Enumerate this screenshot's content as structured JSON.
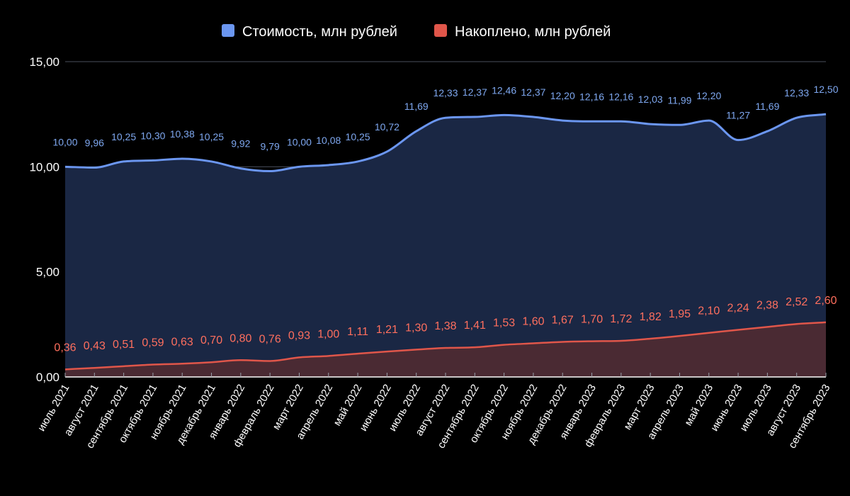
{
  "chart_data": {
    "type": "area",
    "legend_position": "top-center",
    "grid": true,
    "ylim": [
      0,
      15
    ],
    "y_ticks": [
      "0,00",
      "5,00",
      "10,00",
      "15,00"
    ],
    "categories": [
      "июль 2021",
      "август 2021",
      "сентябрь 2021",
      "октябрь 2021",
      "ноябрь 2021",
      "декабрь 2021",
      "январь 2022",
      "февраль 2022",
      "март 2022",
      "апрель 2022",
      "май 2022",
      "июнь 2022",
      "июль 2022",
      "август 2022",
      "сентябрь 2022",
      "октябрь 2022",
      "ноябрь 2022",
      "декабрь 2022",
      "январь 2023",
      "февраль 2023",
      "март 2023",
      "апрель 2023",
      "май 2023",
      "июнь 2023",
      "июль 2023",
      "август 2023",
      "сентябрь 2023"
    ],
    "series": [
      {
        "name": "Стоимость, млн рублей",
        "color": "#6b96f0",
        "fill": "#1a2744",
        "values": [
          10.0,
          9.96,
          10.25,
          10.3,
          10.38,
          10.25,
          9.92,
          9.79,
          10.0,
          10.08,
          10.25,
          10.72,
          11.69,
          12.33,
          12.37,
          12.46,
          12.37,
          12.2,
          12.16,
          12.16,
          12.03,
          11.99,
          12.2,
          11.27,
          11.69,
          12.33,
          12.5
        ],
        "labels": [
          "10,00",
          "9,96",
          "10,25",
          "10,30",
          "10,38",
          "10,25",
          "9,92",
          "9,79",
          "10,00",
          "10,08",
          "10,25",
          "10,72",
          "11,69",
          "12,33",
          "12,37",
          "12,46",
          "12,37",
          "12,20",
          "12,16",
          "12,16",
          "12,03",
          "11,99",
          "12,20",
          "11,27",
          "11,69",
          "12,33",
          "12,50"
        ]
      },
      {
        "name": "Накоплено, млн рублей",
        "color": "#e0564a",
        "fill": "#4a2a33",
        "values": [
          0.36,
          0.43,
          0.51,
          0.59,
          0.63,
          0.7,
          0.8,
          0.76,
          0.93,
          1.0,
          1.11,
          1.21,
          1.3,
          1.38,
          1.41,
          1.53,
          1.6,
          1.67,
          1.7,
          1.72,
          1.82,
          1.95,
          2.1,
          2.24,
          2.38,
          2.52,
          2.6
        ],
        "labels": [
          "0,36",
          "0,43",
          "0,51",
          "0,59",
          "0,63",
          "0,70",
          "0,80",
          "0,76",
          "0,93",
          "1,00",
          "1,11",
          "1,21",
          "1,30",
          "1,38",
          "1,41",
          "1,53",
          "1,60",
          "1,67",
          "1,70",
          "1,72",
          "1,82",
          "1,95",
          "2,10",
          "2,24",
          "2,38",
          "2,52",
          "2,60"
        ]
      }
    ]
  }
}
